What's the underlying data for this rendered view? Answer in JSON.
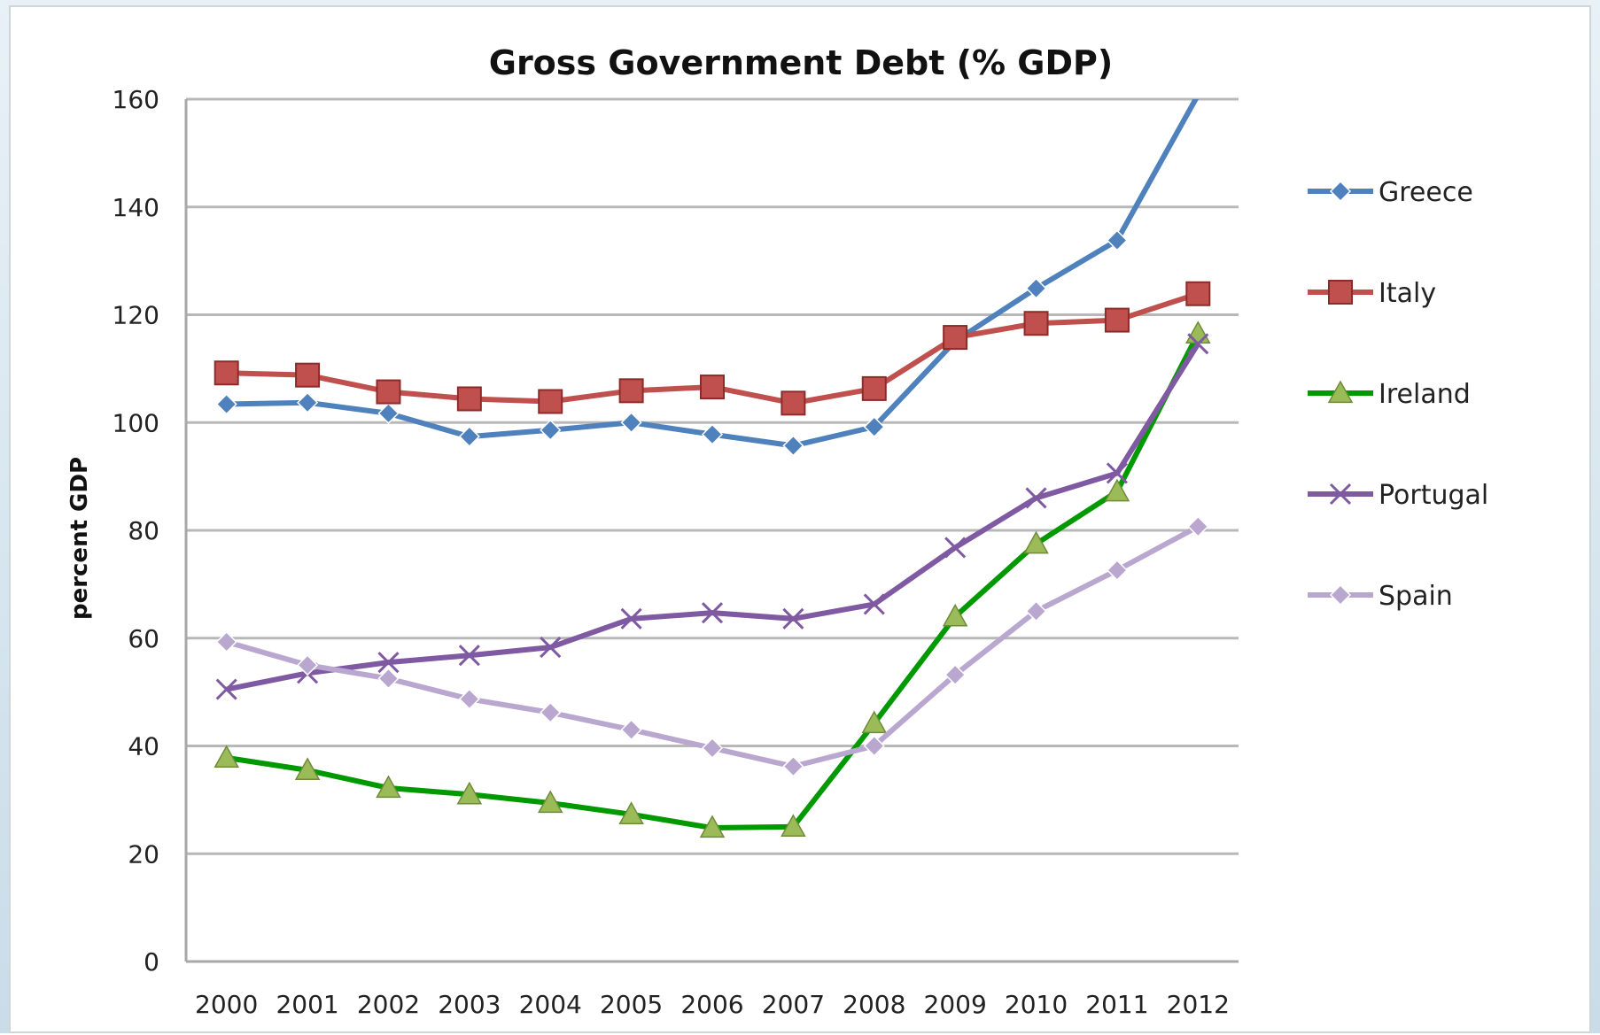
{
  "chart_data": {
    "type": "line",
    "title": "Gross Government Debt (% GDP)",
    "xlabel": "",
    "ylabel": "percent GDP",
    "ylim": [
      0,
      160
    ],
    "yticks": [
      0,
      20,
      40,
      60,
      80,
      100,
      120,
      140,
      160
    ],
    "grid": true,
    "legend": "right",
    "x": [
      "2000",
      "2001",
      "2002",
      "2003",
      "2004",
      "2005",
      "2006",
      "2007",
      "2008",
      "2009",
      "2010",
      "2011",
      "2012"
    ],
    "series": [
      {
        "name": "Greece",
        "color": "#4f81bd",
        "marker": "diamond",
        "values": [
          103.4,
          103.7,
          101.7,
          97.4,
          98.6,
          100.0,
          97.8,
          95.7,
          99.2,
          115.1,
          124.9,
          133.8,
          160.8
        ]
      },
      {
        "name": "Italy",
        "color": "#c0504d",
        "marker": "square",
        "values": [
          109.2,
          108.8,
          105.7,
          104.4,
          103.9,
          105.9,
          106.6,
          103.6,
          106.3,
          115.8,
          118.4,
          119.0,
          123.9
        ]
      },
      {
        "name": "Ireland",
        "color": "#009900",
        "marker": "triangle",
        "values": [
          37.8,
          35.5,
          32.2,
          31.0,
          29.4,
          27.3,
          24.8,
          25.0,
          44.2,
          64.0,
          77.5,
          87.2,
          116.5
        ]
      },
      {
        "name": "Portugal",
        "color": "#7f5aa2",
        "marker": "cross",
        "values": [
          50.5,
          53.5,
          55.5,
          56.8,
          58.3,
          63.6,
          64.7,
          63.6,
          66.3,
          76.8,
          86.0,
          90.6,
          114.6
        ]
      },
      {
        "name": "Spain",
        "color": "#b9a7d0",
        "marker": "diamond",
        "values": [
          59.3,
          55.0,
          52.5,
          48.7,
          46.2,
          43.0,
          39.6,
          36.2,
          40.0,
          53.2,
          65.0,
          72.6,
          80.7
        ]
      }
    ]
  }
}
